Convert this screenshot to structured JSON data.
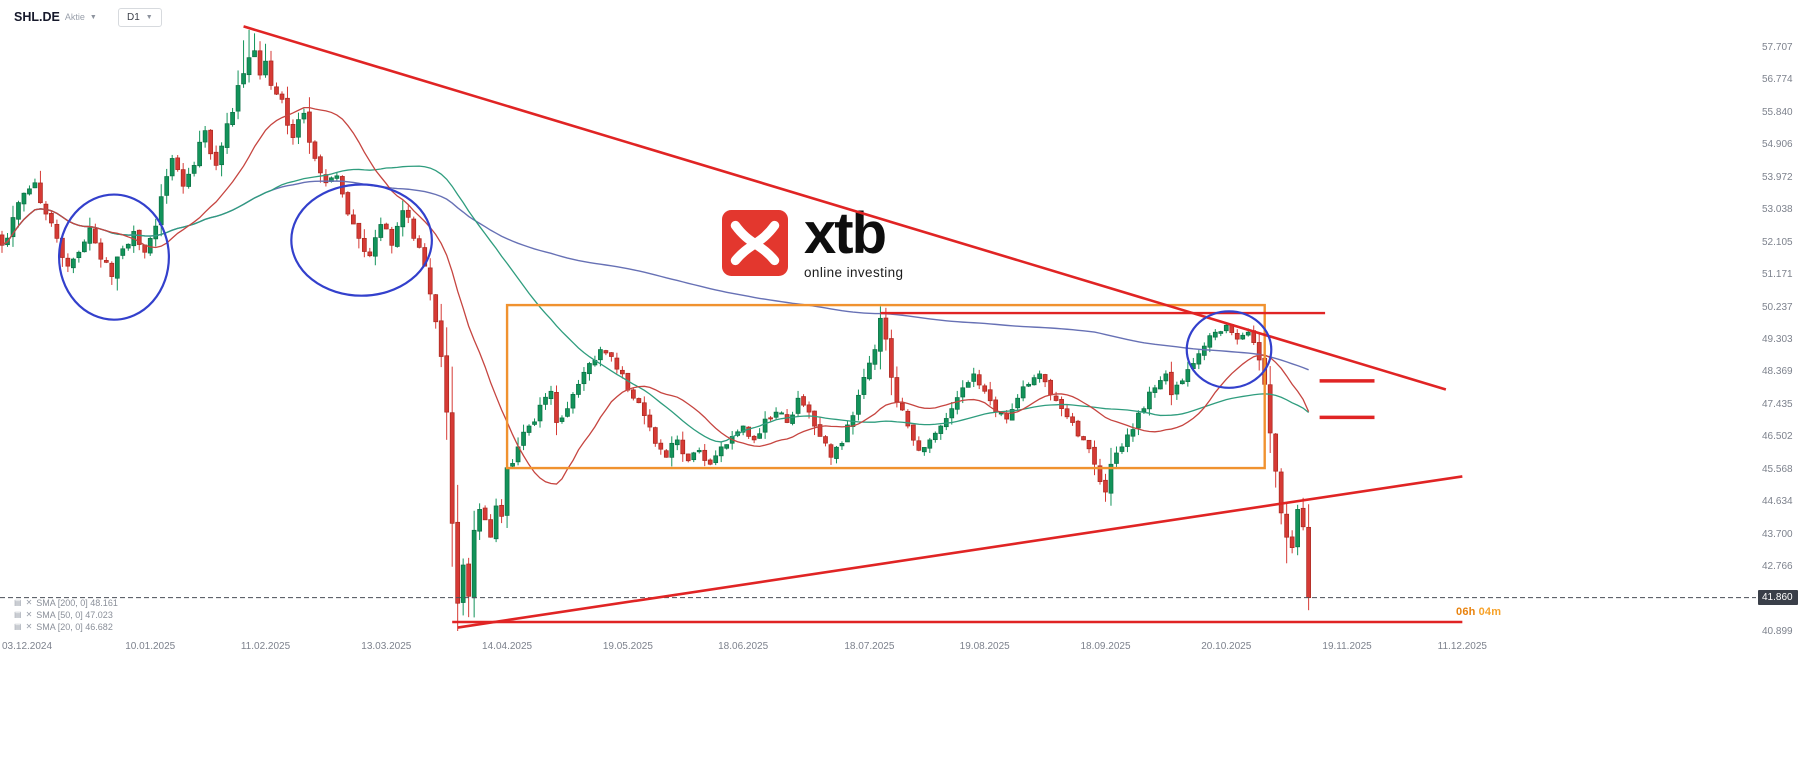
{
  "header": {
    "symbol": "SHL.DE",
    "instrument_type": "Aktie",
    "timeframe": "D1"
  },
  "watermark": {
    "brand": "xtb",
    "tagline": "online investing",
    "logo_color": "#e3372e"
  },
  "legend": [
    {
      "label": "SMA [200, 0]",
      "value": "48.161"
    },
    {
      "label": "SMA [50, 0]",
      "value": "47.023"
    },
    {
      "label": "SMA [20, 0]",
      "value": "46.682"
    }
  ],
  "session_countdown": {
    "hours": "06h",
    "minutes": "04m"
  },
  "chart_data": {
    "type": "candlestick",
    "symbol": "SHL.DE",
    "timeframe": "D1",
    "ylim": [
      40.899,
      58.45
    ],
    "grid": false,
    "price_axis_ticks": [
      "57.707",
      "56.774",
      "55.840",
      "54.906",
      "53.972",
      "53.038",
      "52.105",
      "51.171",
      "50.237",
      "49.303",
      "48.369",
      "47.435",
      "46.502",
      "45.568",
      "44.634",
      "43.700",
      "42.766",
      "40.899"
    ],
    "current_price": 41.86,
    "current_price_label": "41.860",
    "time_axis_labels": [
      {
        "text": "03.12.2024",
        "day": 0
      },
      {
        "text": "10.01.2025",
        "day": 27
      },
      {
        "text": "11.02.2025",
        "day": 48
      },
      {
        "text": "13.03.2025",
        "day": 70
      },
      {
        "text": "14.04.2025",
        "day": 92
      },
      {
        "text": "19.05.2025",
        "day": 114
      },
      {
        "text": "18.06.2025",
        "day": 135
      },
      {
        "text": "18.07.2025",
        "day": 158
      },
      {
        "text": "19.08.2025",
        "day": 179
      },
      {
        "text": "18.09.2025",
        "day": 201
      },
      {
        "text": "20.10.2025",
        "day": 223
      },
      {
        "text": "19.11.2025",
        "day": 245
      },
      {
        "text": "11.12.2025",
        "day": 266
      }
    ],
    "num_candles": 239,
    "close_anchors": [
      [
        0,
        52.0
      ],
      [
        2,
        52.8
      ],
      [
        4,
        53.5
      ],
      [
        6,
        53.8
      ],
      [
        8,
        52.9
      ],
      [
        10,
        52.2
      ],
      [
        12,
        51.4
      ],
      [
        14,
        51.8
      ],
      [
        16,
        52.5
      ],
      [
        18,
        51.6
      ],
      [
        20,
        51.1
      ],
      [
        22,
        51.9
      ],
      [
        24,
        52.4
      ],
      [
        26,
        51.8
      ],
      [
        27,
        52.2
      ],
      [
        29,
        53.4
      ],
      [
        31,
        54.5
      ],
      [
        33,
        53.7
      ],
      [
        35,
        54.3
      ],
      [
        37,
        55.3
      ],
      [
        39,
        54.3
      ],
      [
        41,
        55.5
      ],
      [
        43,
        56.6
      ],
      [
        45,
        57.4
      ],
      [
        46,
        57.6
      ],
      [
        47,
        56.9
      ],
      [
        48,
        57.3
      ],
      [
        49,
        56.6
      ],
      [
        51,
        56.2
      ],
      [
        53,
        55.1
      ],
      [
        55,
        55.8
      ],
      [
        57,
        54.5
      ],
      [
        59,
        53.8
      ],
      [
        61,
        54.0
      ],
      [
        63,
        52.9
      ],
      [
        65,
        52.2
      ],
      [
        67,
        51.7
      ],
      [
        69,
        52.6
      ],
      [
        71,
        52.0
      ],
      [
        73,
        53.0
      ],
      [
        75,
        52.2
      ],
      [
        77,
        51.4
      ],
      [
        78,
        50.6
      ],
      [
        79,
        49.8
      ],
      [
        80,
        48.8
      ],
      [
        81,
        47.2
      ],
      [
        82,
        44.0
      ],
      [
        83,
        41.7
      ],
      [
        84,
        42.8
      ],
      [
        85,
        41.9
      ],
      [
        86,
        43.8
      ],
      [
        87,
        44.4
      ],
      [
        88,
        44.1
      ],
      [
        89,
        43.6
      ],
      [
        90,
        44.5
      ],
      [
        91,
        44.2
      ],
      [
        92,
        45.6
      ],
      [
        94,
        46.2
      ],
      [
        96,
        46.8
      ],
      [
        98,
        47.4
      ],
      [
        100,
        47.8
      ],
      [
        101,
        46.9
      ],
      [
        103,
        47.3
      ],
      [
        105,
        48.0
      ],
      [
        107,
        48.6
      ],
      [
        109,
        49.0
      ],
      [
        111,
        48.8
      ],
      [
        113,
        48.3
      ],
      [
        115,
        47.6
      ],
      [
        117,
        47.1
      ],
      [
        119,
        46.3
      ],
      [
        121,
        45.9
      ],
      [
        123,
        46.4
      ],
      [
        125,
        45.8
      ],
      [
        127,
        46.1
      ],
      [
        129,
        45.7
      ],
      [
        131,
        46.2
      ],
      [
        133,
        46.5
      ],
      [
        135,
        46.8
      ],
      [
        137,
        46.4
      ],
      [
        139,
        47.0
      ],
      [
        141,
        47.2
      ],
      [
        143,
        46.9
      ],
      [
        145,
        47.6
      ],
      [
        147,
        47.2
      ],
      [
        149,
        46.5
      ],
      [
        151,
        45.9
      ],
      [
        153,
        46.3
      ],
      [
        155,
        47.1
      ],
      [
        157,
        48.2
      ],
      [
        159,
        49.0
      ],
      [
        160,
        49.9
      ],
      [
        161,
        49.3
      ],
      [
        162,
        48.2
      ],
      [
        163,
        47.5
      ],
      [
        165,
        46.8
      ],
      [
        167,
        46.1
      ],
      [
        169,
        46.4
      ],
      [
        171,
        46.8
      ],
      [
        173,
        47.3
      ],
      [
        175,
        47.9
      ],
      [
        177,
        48.3
      ],
      [
        179,
        47.8
      ],
      [
        181,
        47.2
      ],
      [
        183,
        47.0
      ],
      [
        185,
        47.6
      ],
      [
        187,
        48.0
      ],
      [
        189,
        48.3
      ],
      [
        191,
        47.7
      ],
      [
        193,
        47.3
      ],
      [
        195,
        46.9
      ],
      [
        197,
        46.4
      ],
      [
        199,
        45.7
      ],
      [
        200,
        45.2
      ],
      [
        201,
        44.9
      ],
      [
        202,
        45.7
      ],
      [
        204,
        46.2
      ],
      [
        206,
        46.7
      ],
      [
        208,
        47.3
      ],
      [
        210,
        47.9
      ],
      [
        212,
        48.3
      ],
      [
        213,
        47.7
      ],
      [
        215,
        48.1
      ],
      [
        217,
        48.6
      ],
      [
        219,
        49.1
      ],
      [
        221,
        49.5
      ],
      [
        223,
        49.7
      ],
      [
        225,
        49.3
      ],
      [
        227,
        49.5
      ],
      [
        228,
        49.2
      ],
      [
        229,
        48.7
      ],
      [
        230,
        48.0
      ],
      [
        231,
        46.6
      ],
      [
        232,
        45.5
      ],
      [
        233,
        44.3
      ],
      [
        234,
        43.6
      ],
      [
        235,
        43.3
      ],
      [
        236,
        44.4
      ],
      [
        237,
        43.9
      ],
      [
        238,
        41.86
      ]
    ],
    "wick_overrides": {
      "44": {
        "high": 57.9
      },
      "45": {
        "high": 58.2
      },
      "46": {
        "high": 58.1
      },
      "48": {
        "high": 57.8
      },
      "82": {
        "low": 43.3
      },
      "83": {
        "low": 40.93
      },
      "84": {
        "low": 41.35
      },
      "85": {
        "low": 41.3
      },
      "160": {
        "high": 50.24
      },
      "201": {
        "low": 44.62
      },
      "234": {
        "low": 42.85
      },
      "238": {
        "low": 41.5
      }
    },
    "sma_lines": [
      {
        "name": "SMA 200",
        "period": 200,
        "color": "#6771b5",
        "width": 1.4
      },
      {
        "name": "SMA 50",
        "period": 50,
        "color": "#2f9d7e",
        "width": 1.3
      },
      {
        "name": "SMA 20",
        "period": 20,
        "color": "#c64540",
        "width": 1.3
      }
    ],
    "candle_colors": {
      "up_fill": "#12935a",
      "up_stroke": "#0a6e42",
      "down_fill": "#d63a35",
      "down_stroke": "#a8281f"
    },
    "overlays": {
      "line_color": "#e02424",
      "ellipse_color": "#3340cc",
      "trendlines": [
        {
          "name": "descending-resistance-trendline",
          "from": [
            44,
            58.3
          ],
          "to": [
            263,
            47.85
          ]
        },
        {
          "name": "ascending-support-trendline",
          "from": [
            83,
            41.0
          ],
          "to": [
            266,
            45.35
          ]
        }
      ],
      "horizontal_lines": [
        {
          "name": "horizontal-support-line",
          "price": 41.16,
          "from_day": 82,
          "to_day": 266,
          "thick": false
        },
        {
          "name": "horizontal-resistance-line",
          "price": 50.05,
          "from_day": 160,
          "to_day": 241,
          "thick": false
        },
        {
          "name": "target-level-1",
          "price": 48.1,
          "from_day": 240,
          "to_day": 250,
          "thick": true
        },
        {
          "name": "target-level-2",
          "price": 47.05,
          "from_day": 240,
          "to_day": 250,
          "thick": true
        }
      ],
      "rectangle": {
        "name": "consolidation-zone-rectangle",
        "from_day": 92,
        "to_day": 230,
        "top": 50.28,
        "bottom": 45.59,
        "color": "#f0922f"
      },
      "ellipses": [
        {
          "name": "highlight-ellipse-1",
          "center_day": 20.4,
          "center_price": 51.66,
          "rx_days": 10.0,
          "ry_price": 1.8
        },
        {
          "name": "highlight-ellipse-2",
          "center_day": 65.5,
          "center_price": 52.15,
          "rx_days": 12.8,
          "ry_price": 1.6
        },
        {
          "name": "highlight-ellipse-3",
          "center_day": 223.5,
          "center_price": 49.0,
          "rx_days": 7.7,
          "ry_price": 1.1
        }
      ]
    }
  }
}
